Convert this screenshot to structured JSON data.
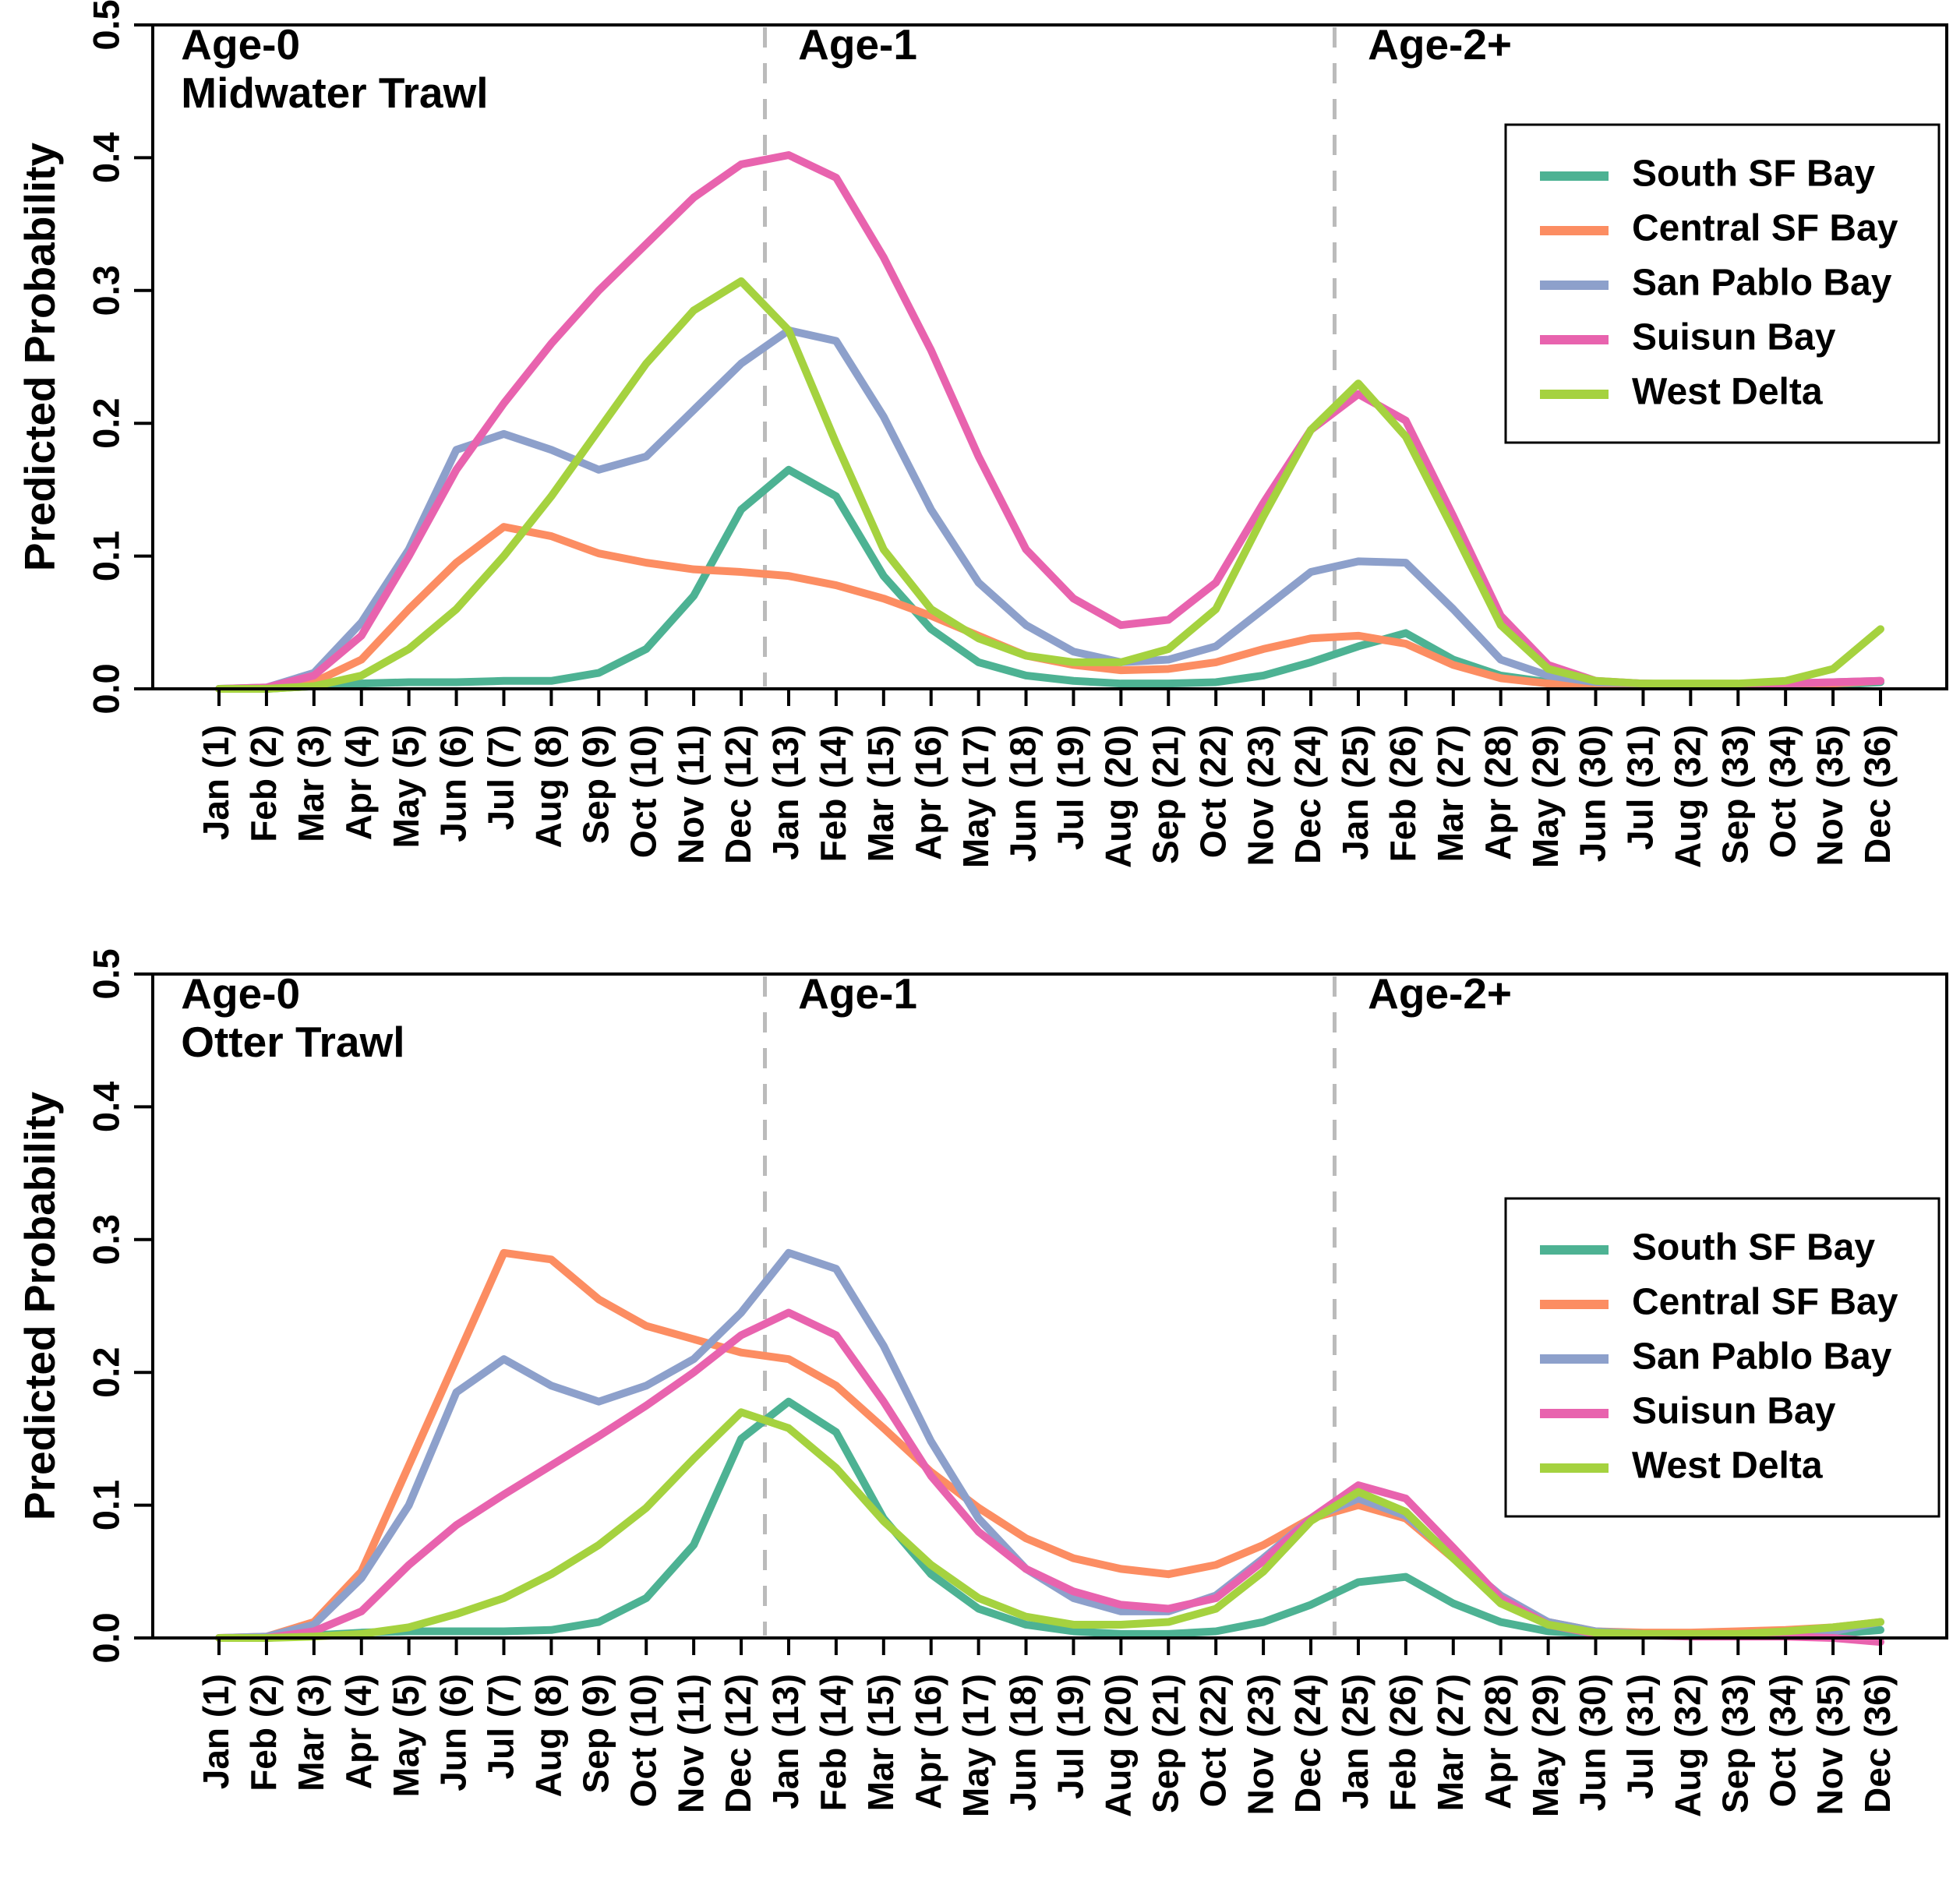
{
  "figure": {
    "background_color": "#FFFFFF",
    "axis_color": "#000000",
    "annotation_gray": "#BBBBBB"
  },
  "chart_data": [
    {
      "type": "line",
      "title": "Midwater Trawl",
      "ylabel": "Predicted Probability",
      "ylim": [
        0,
        0.5
      ],
      "yticks": [
        0,
        0.1,
        0.2,
        0.3,
        0.4,
        0.5
      ],
      "grid": false,
      "legend_position": "top-right",
      "vlines": {
        "x": [
          12.5,
          24.5
        ],
        "style": "dashed",
        "color": "#BBBBBB"
      },
      "age_annotations": [
        {
          "label": "Age-0",
          "month": 0.2
        },
        {
          "label": "Age-1",
          "month": 13.2
        },
        {
          "label": "Age-2+",
          "month": 25.2
        }
      ],
      "categories": [
        "Jan (1)",
        "Feb (2)",
        "Mar (3)",
        "Apr (4)",
        "May (5)",
        "Jun (6)",
        "Jul (7)",
        "Aug (8)",
        "Sep (9)",
        "Oct (10)",
        "Nov (11)",
        "Dec (12)",
        "Jan (13)",
        "Feb (14)",
        "Mar (15)",
        "Apr (16)",
        "May (17)",
        "Jun (18)",
        "Jul (19)",
        "Aug (20)",
        "Sep (21)",
        "Oct (22)",
        "Nov (23)",
        "Dec (24)",
        "Jan (25)",
        "Feb (26)",
        "Mar (27)",
        "Apr (28)",
        "May (29)",
        "Jun (30)",
        "Jul (31)",
        "Aug (32)",
        "Sep (33)",
        "Oct (34)",
        "Nov (35)",
        "Dec (36)"
      ],
      "series": [
        {
          "name": "South SF Bay",
          "color": "#4DB293",
          "values": [
            0,
            0,
            0.002,
            0.004,
            0.005,
            0.005,
            0.006,
            0.006,
            0.012,
            0.03,
            0.07,
            0.135,
            0.165,
            0.145,
            0.085,
            0.045,
            0.02,
            0.01,
            0.006,
            0.004,
            0.004,
            0.005,
            0.01,
            0.02,
            0.032,
            0.042,
            0.022,
            0.01,
            0.005,
            0.003,
            0.002,
            0.002,
            0.002,
            0.002,
            0.003,
            0.005
          ]
        },
        {
          "name": "Central SF Bay",
          "color": "#FC8D62",
          "values": [
            0,
            0,
            0.005,
            0.022,
            0.06,
            0.095,
            0.122,
            0.115,
            0.102,
            0.095,
            0.09,
            0.088,
            0.085,
            0.078,
            0.068,
            0.055,
            0.04,
            0.025,
            0.018,
            0.014,
            0.015,
            0.02,
            0.03,
            0.038,
            0.04,
            0.034,
            0.018,
            0.008,
            0.004,
            0.003,
            0.002,
            0.002,
            0.002,
            0.003,
            0.004,
            0.006
          ]
        },
        {
          "name": "San Pablo Bay",
          "color": "#8DA0CB",
          "values": [
            0,
            0.001,
            0.012,
            0.05,
            0.105,
            0.18,
            0.192,
            0.18,
            0.165,
            0.175,
            0.21,
            0.245,
            0.27,
            0.262,
            0.205,
            0.135,
            0.08,
            0.048,
            0.028,
            0.02,
            0.022,
            0.032,
            0.06,
            0.088,
            0.096,
            0.095,
            0.06,
            0.022,
            0.01,
            0.005,
            0.004,
            0.003,
            0.003,
            0.004,
            0.005,
            0.006
          ]
        },
        {
          "name": "Suisun Bay",
          "color": "#E863AE",
          "values": [
            0,
            0.001,
            0.01,
            0.04,
            0.1,
            0.165,
            0.215,
            0.26,
            0.3,
            0.335,
            0.37,
            0.395,
            0.402,
            0.385,
            0.325,
            0.255,
            0.175,
            0.105,
            0.068,
            0.048,
            0.052,
            0.08,
            0.14,
            0.195,
            0.222,
            0.202,
            0.13,
            0.055,
            0.018,
            0.006,
            0.004,
            0.003,
            0.003,
            0.004,
            0.005,
            0.006
          ]
        },
        {
          "name": "West Delta",
          "color": "#A5D23F",
          "values": [
            0,
            0,
            0.002,
            0.01,
            0.03,
            0.06,
            0.1,
            0.145,
            0.195,
            0.245,
            0.285,
            0.307,
            0.27,
            0.185,
            0.105,
            0.06,
            0.038,
            0.025,
            0.02,
            0.02,
            0.03,
            0.06,
            0.13,
            0.195,
            0.23,
            0.19,
            0.12,
            0.048,
            0.015,
            0.006,
            0.004,
            0.004,
            0.004,
            0.006,
            0.015,
            0.045
          ]
        }
      ]
    },
    {
      "type": "line",
      "title": "Otter Trawl",
      "ylabel": "Predicted Probability",
      "ylim": [
        0,
        0.5
      ],
      "yticks": [
        0,
        0.1,
        0.2,
        0.3,
        0.4,
        0.5
      ],
      "grid": false,
      "legend_position": "top-right",
      "vlines": {
        "x": [
          12.5,
          24.5
        ],
        "style": "dashed",
        "color": "#BBBBBB"
      },
      "age_annotations": [
        {
          "label": "Age-0",
          "month": 0.2
        },
        {
          "label": "Age-1",
          "month": 13.2
        },
        {
          "label": "Age-2+",
          "month": 25.2
        }
      ],
      "categories": [
        "Jan (1)",
        "Feb (2)",
        "Mar (3)",
        "Apr (4)",
        "May (5)",
        "Jun (6)",
        "Jul (7)",
        "Aug (8)",
        "Sep (9)",
        "Oct (10)",
        "Nov (11)",
        "Dec (12)",
        "Jan (13)",
        "Feb (14)",
        "Mar (15)",
        "Apr (16)",
        "May (17)",
        "Jun (18)",
        "Jul (19)",
        "Aug (20)",
        "Sep (21)",
        "Oct (22)",
        "Nov (23)",
        "Dec (24)",
        "Jan (25)",
        "Feb (26)",
        "Mar (27)",
        "Apr (28)",
        "May (29)",
        "Jun (30)",
        "Jul (31)",
        "Aug (32)",
        "Sep (33)",
        "Oct (34)",
        "Nov (35)",
        "Dec (36)"
      ],
      "series": [
        {
          "name": "South SF Bay",
          "color": "#4DB293",
          "values": [
            0,
            0,
            0.002,
            0.004,
            0.005,
            0.005,
            0.005,
            0.006,
            0.012,
            0.03,
            0.07,
            0.15,
            0.178,
            0.155,
            0.09,
            0.048,
            0.022,
            0.01,
            0.005,
            0.003,
            0.003,
            0.005,
            0.012,
            0.025,
            0.042,
            0.046,
            0.026,
            0.012,
            0.005,
            0.003,
            0.002,
            0.002,
            0.002,
            0.002,
            0.003,
            0.006
          ]
        },
        {
          "name": "Central SF Bay",
          "color": "#FC8D62",
          "values": [
            0,
            0.001,
            0.012,
            0.05,
            0.13,
            0.21,
            0.29,
            0.285,
            0.255,
            0.235,
            0.225,
            0.215,
            0.21,
            0.19,
            0.158,
            0.125,
            0.098,
            0.075,
            0.06,
            0.052,
            0.048,
            0.055,
            0.07,
            0.09,
            0.1,
            0.09,
            0.06,
            0.03,
            0.012,
            0.005,
            0.004,
            0.004,
            0.005,
            0.006,
            0.008,
            0.012
          ]
        },
        {
          "name": "San Pablo Bay",
          "color": "#8DA0CB",
          "values": [
            0,
            0.001,
            0.01,
            0.045,
            0.1,
            0.185,
            0.21,
            0.19,
            0.178,
            0.19,
            0.21,
            0.245,
            0.29,
            0.278,
            0.22,
            0.148,
            0.09,
            0.052,
            0.03,
            0.02,
            0.02,
            0.032,
            0.06,
            0.09,
            0.105,
            0.092,
            0.062,
            0.032,
            0.012,
            0.005,
            0.003,
            0.002,
            0.002,
            0.003,
            0.005,
            0.012
          ]
        },
        {
          "name": "Suisun Bay",
          "color": "#E863AE",
          "values": [
            0,
            0,
            0.005,
            0.02,
            0.055,
            0.085,
            0.108,
            0.13,
            0.152,
            0.175,
            0.2,
            0.228,
            0.245,
            0.228,
            0.178,
            0.122,
            0.08,
            0.052,
            0.035,
            0.025,
            0.022,
            0.03,
            0.058,
            0.09,
            0.115,
            0.105,
            0.068,
            0.03,
            0.01,
            0.003,
            0.002,
            0.001,
            0.001,
            0.001,
            0,
            -0.003
          ]
        },
        {
          "name": "West Delta",
          "color": "#A5D23F",
          "values": [
            0,
            0,
            0.001,
            0.003,
            0.008,
            0.018,
            0.03,
            0.048,
            0.07,
            0.098,
            0.135,
            0.17,
            0.158,
            0.128,
            0.088,
            0.055,
            0.03,
            0.016,
            0.01,
            0.01,
            0.012,
            0.022,
            0.05,
            0.088,
            0.11,
            0.095,
            0.06,
            0.026,
            0.01,
            0.004,
            0.003,
            0.003,
            0.003,
            0.005,
            0.008,
            0.012
          ]
        }
      ]
    }
  ]
}
